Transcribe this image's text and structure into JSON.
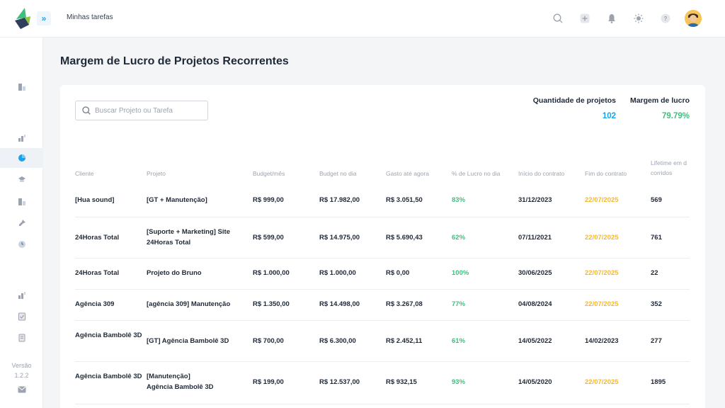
{
  "header": {
    "breadcrumb": "Minhas tarefas",
    "icons": [
      "search-icon",
      "add-icon",
      "bell-icon",
      "sun-icon",
      "help-icon"
    ],
    "help_symbol": "?"
  },
  "sidebar": {
    "version_label": "Versão",
    "version_number": "1.2.2"
  },
  "page": {
    "title": "Margem de Lucro de Projetos Recorrentes"
  },
  "search": {
    "placeholder": "Buscar Projeto ou Tarefa"
  },
  "stats": {
    "count_label": "Quantidade de projetos",
    "count_value": "102",
    "margin_label": "Margem de lucro",
    "margin_value": "79.79%"
  },
  "table": {
    "columns": {
      "cliente": "Cliente",
      "projeto": "Projeto",
      "budget_mes": "Budget/mês",
      "budget_dia": "Budget no dia",
      "gasto": "Gasto até agora",
      "lucro": "% de Lucro no dia",
      "inicio": "Início do contrato",
      "fim": "Fim do contrato",
      "lifetime_1": "Lifetime em d",
      "lifetime_2": "corridos"
    },
    "rows": [
      {
        "cliente": "[Hua sound]",
        "projeto": "[GT + Manutenção]",
        "budget_mes": "R$ 999,00",
        "budget_dia": "R$ 17.982,00",
        "gasto": "R$ 3.051,50",
        "lucro": "83%",
        "inicio": "31/12/2023",
        "fim": "22/07/2025",
        "lifetime": "569"
      },
      {
        "cliente": "24Horas Total",
        "projeto": "[Suporte + Marketing] Site 24Horas Total",
        "budget_mes": "R$ 599,00",
        "budget_dia": "R$ 14.975,00",
        "gasto": "R$ 5.690,43",
        "lucro": "62%",
        "inicio": "07/11/2021",
        "fim": "22/07/2025",
        "lifetime": "761"
      },
      {
        "cliente": "24Horas Total",
        "projeto": "Projeto do Bruno",
        "budget_mes": "R$ 1.000,00",
        "budget_dia": "R$ 1.000,00",
        "gasto": "R$ 0,00",
        "lucro": "100%",
        "inicio": "30/06/2025",
        "fim": "22/07/2025",
        "lifetime": "22"
      },
      {
        "cliente": "Agência 309",
        "projeto": "[agência 309] Manutenção",
        "budget_mes": "R$ 1.350,00",
        "budget_dia": "R$ 14.498,00",
        "gasto": "R$ 3.267,08",
        "lucro": "77%",
        "inicio": "04/08/2024",
        "fim": "22/07/2025",
        "lifetime": "352"
      },
      {
        "cliente": "Agência Bambolê 3D",
        "projeto": "[GT] Agência Bambolê 3D",
        "budget_mes": "R$ 700,00",
        "budget_dia": "R$ 6.300,00",
        "gasto": "R$ 2.452,11",
        "lucro": "61%",
        "inicio": "14/05/2022",
        "fim": "14/02/2023",
        "lifetime": "277"
      },
      {
        "cliente": "Agência Bambolê 3D",
        "projeto": "[Manutenção] Agência Bambolê 3D",
        "budget_mes": "R$ 199,00",
        "budget_dia": "R$ 12.537,00",
        "gasto": "R$ 932,15",
        "lucro": "93%",
        "inicio": "14/05/2020",
        "fim": "22/07/2025",
        "lifetime": "1895"
      }
    ]
  },
  "colors": {
    "accent_blue": "#1aa3e8",
    "profit_green": "#3fbf7f",
    "date_warning": "#f5b82e"
  }
}
